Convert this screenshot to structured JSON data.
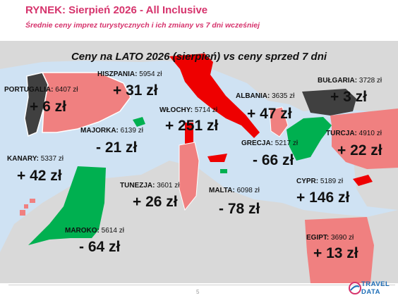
{
  "header": {
    "title": "RYNEK: Sierpień 2026 - All Inclusive",
    "subtitle": "Średnie ceny imprez turystycznych i ich zmiany vs 7 dni wcześniej"
  },
  "map": {
    "heading": "Ceny na LATO 2026 (sierpień) vs ceny sprzed 7 dni",
    "colors": {
      "increase_large": "#ee0000",
      "increase": "#f08080",
      "decrease": "#00b050",
      "neutral": "#404040",
      "land": "#d9d9d9",
      "sea": "#cfe2f3"
    },
    "destinations": [
      {
        "id": "portugalia",
        "name": "PORTUGALIA:",
        "price": "6407 zł",
        "change": "+ 6 zł",
        "color": "#404040"
      },
      {
        "id": "hiszpania",
        "name": "HISZPANIA:",
        "price": "5954 zł",
        "change": "+ 31 zł",
        "color": "#f08080"
      },
      {
        "id": "wlochy",
        "name": "WŁOCHY:",
        "price": "5714 zł",
        "change": "+ 251 zł",
        "color": "#ee0000"
      },
      {
        "id": "albania",
        "name": "ALBANIA:",
        "price": "3635 zł",
        "change": "+ 47 zł",
        "color": "#f08080"
      },
      {
        "id": "bulgaria",
        "name": "BUŁGARIA:",
        "price": "3728 zł",
        "change": "+ 3 zł",
        "color": "#404040"
      },
      {
        "id": "majorka",
        "name": "MAJORKA:",
        "price": "6139 zł",
        "change": "- 21 zł",
        "color": "#00b050"
      },
      {
        "id": "turcja",
        "name": "TURCJA:",
        "price": "4910 zł",
        "change": "+ 22 zł",
        "color": "#f08080"
      },
      {
        "id": "grecja",
        "name": "GRECJA:",
        "price": "5217 zł",
        "change": "- 66 zł",
        "color": "#00b050"
      },
      {
        "id": "kanary",
        "name": "KANARY:",
        "price": "5337 zł",
        "change": "+ 42 zł",
        "color": "#f08080"
      },
      {
        "id": "tunezja",
        "name": "TUNEZJA:",
        "price": "3601 zł",
        "change": "+ 26 zł",
        "color": "#f08080"
      },
      {
        "id": "malta",
        "name": "MALTA:",
        "price": "6098 zł",
        "change": "- 78 zł",
        "color": "#00b050"
      },
      {
        "id": "cypr",
        "name": "CYPR:",
        "price": "5189 zł",
        "change": "+ 146 zł",
        "color": "#ee0000"
      },
      {
        "id": "maroko",
        "name": "MAROKO:",
        "price": "5614 zł",
        "change": "- 64 zł",
        "color": "#00b050"
      },
      {
        "id": "egipt",
        "name": "EGIPT:",
        "price": "3690 zł",
        "change": "+ 13 zł",
        "color": "#f08080"
      }
    ]
  },
  "footer": {
    "page_number": "5",
    "logo_text_1": "TRAVEL",
    "logo_text_2": "DATA"
  }
}
